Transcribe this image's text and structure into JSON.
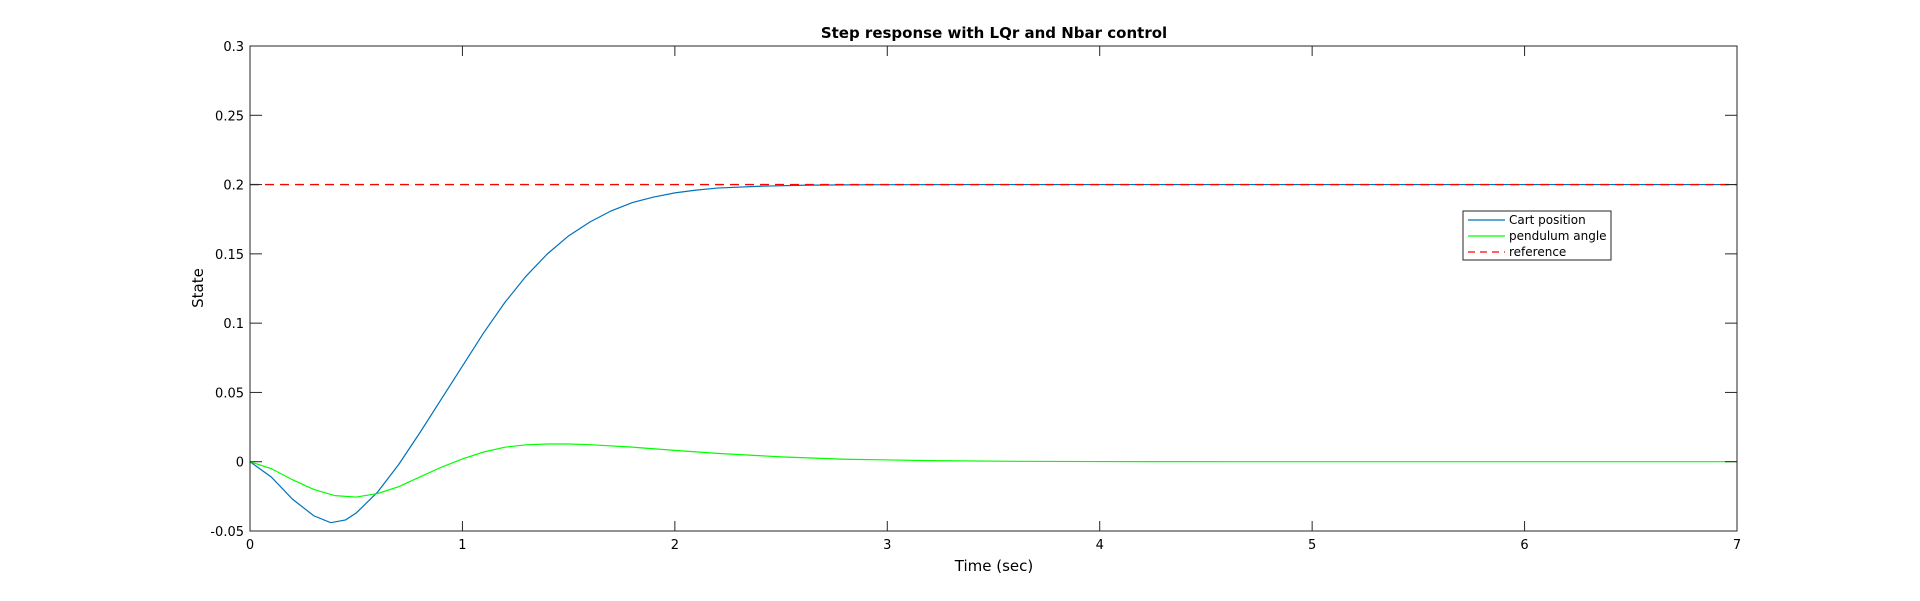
{
  "chart_data": {
    "type": "line",
    "title": "Step response with LQr and Nbar control",
    "xlabel": "Time (sec)",
    "ylabel": "State",
    "xlim": [
      0,
      7
    ],
    "ylim": [
      -0.05,
      0.3
    ],
    "xticks": [
      0,
      1,
      2,
      3,
      4,
      5,
      6,
      7
    ],
    "xtick_labels": [
      "0",
      "1",
      "2",
      "3",
      "4",
      "5",
      "6",
      "7"
    ],
    "yticks": [
      -0.05,
      0,
      0.05,
      0.1,
      0.15,
      0.2,
      0.25,
      0.3
    ],
    "ytick_labels": [
      "-0.05",
      "0",
      "0.05",
      "0.1",
      "0.15",
      "0.2",
      "0.25",
      "0.3"
    ],
    "grid": false,
    "box": true,
    "legend_position": "upper-right-inside",
    "series": [
      {
        "name": "Cart position",
        "color": "#0072BD",
        "style": "solid",
        "x": [
          0,
          0.1,
          0.2,
          0.3,
          0.38,
          0.45,
          0.5,
          0.6,
          0.7,
          0.8,
          0.9,
          1.0,
          1.1,
          1.2,
          1.3,
          1.4,
          1.5,
          1.6,
          1.7,
          1.8,
          1.9,
          2.0,
          2.1,
          2.2,
          2.4,
          2.6,
          2.8,
          3.0,
          3.4,
          3.8,
          4.5,
          5.5,
          7.0
        ],
        "y": [
          0,
          -0.011,
          -0.027,
          -0.039,
          -0.044,
          -0.042,
          -0.037,
          -0.022,
          -0.002,
          0.021,
          0.045,
          0.069,
          0.093,
          0.115,
          0.134,
          0.15,
          0.163,
          0.173,
          0.181,
          0.187,
          0.191,
          0.194,
          0.196,
          0.1975,
          0.1988,
          0.1995,
          0.1998,
          0.1999,
          0.2,
          0.2,
          0.2,
          0.2,
          0.2
        ]
      },
      {
        "name": "pendulum angle",
        "color": "#00FF00",
        "style": "solid",
        "x": [
          0,
          0.1,
          0.2,
          0.3,
          0.4,
          0.5,
          0.6,
          0.7,
          0.8,
          0.9,
          1.0,
          1.1,
          1.2,
          1.3,
          1.4,
          1.5,
          1.6,
          1.8,
          2.0,
          2.2,
          2.5,
          2.8,
          3.2,
          3.6,
          4.0,
          5.0,
          6.0,
          7.0
        ],
        "y": [
          0,
          -0.005,
          -0.013,
          -0.02,
          -0.0245,
          -0.0255,
          -0.023,
          -0.018,
          -0.011,
          -0.004,
          0.002,
          0.007,
          0.0105,
          0.0122,
          0.0128,
          0.0128,
          0.0123,
          0.0105,
          0.0082,
          0.006,
          0.0035,
          0.0018,
          0.0008,
          0.0003,
          0.0001,
          0,
          0,
          0
        ]
      },
      {
        "name": "reference",
        "color": "#FF0000",
        "style": "dashed",
        "x": [
          0,
          7
        ],
        "y": [
          0.2,
          0.2
        ]
      }
    ]
  }
}
